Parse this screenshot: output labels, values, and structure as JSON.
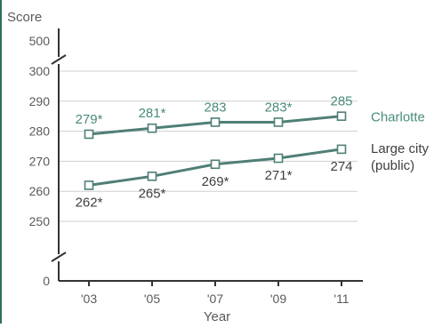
{
  "colors": {
    "accent": "#4a8b7b",
    "series_line": "#4f7f77",
    "label_teal": "#4a8b7b",
    "label_dark": "#404040",
    "axis": "#333333",
    "grid": "#cfcfcf",
    "axis_label": "#5a5a5a",
    "border": "#2e6f60"
  },
  "chart_data": {
    "type": "line",
    "title": "",
    "xlabel": "Year",
    "ylabel": "Score",
    "x": [
      "'03",
      "'05",
      "'07",
      "'09",
      "'11"
    ],
    "y_ticks": [
      0,
      250,
      260,
      270,
      280,
      290,
      300,
      500
    ],
    "y_tick_labels": [
      "0",
      "250",
      "260",
      "270",
      "280",
      "290",
      "300",
      "500"
    ],
    "axis_breaks": true,
    "grid": true,
    "ylim": [
      250,
      300
    ],
    "series": [
      {
        "name": "Charlotte",
        "values": [
          279,
          281,
          283,
          283,
          285
        ],
        "labels": [
          "279*",
          "281*",
          "283",
          "283*",
          "285"
        ],
        "label_position": "above",
        "label_color": "teal"
      },
      {
        "name": "Large city (public)",
        "name_lines": [
          "Large city",
          "(public)"
        ],
        "values": [
          262,
          265,
          269,
          271,
          274
        ],
        "labels": [
          "262*",
          "265*",
          "269*",
          "271*",
          "274"
        ],
        "label_position": "below",
        "label_color": "dark"
      }
    ]
  }
}
